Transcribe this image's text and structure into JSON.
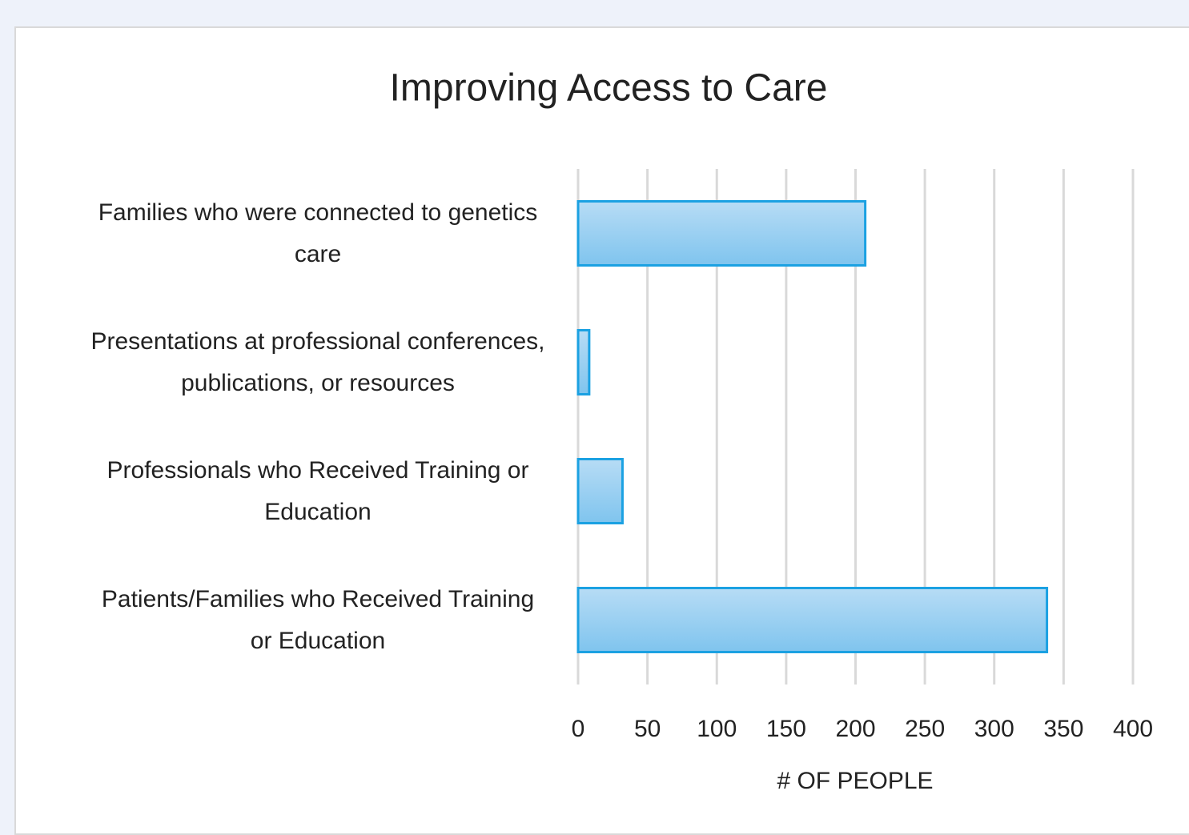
{
  "chart_data": {
    "type": "bar",
    "orientation": "horizontal",
    "title": "Improving  Access to Care",
    "categories": [
      "Families who were connected to genetics care",
      "Presentations at professional conferences, publications, or resources",
      "Professionals who Received Training or Education",
      "Patients/Families who Received Training or Education"
    ],
    "values": [
      207,
      8,
      32,
      338
    ],
    "color": "#1ba1e2",
    "xlim": [
      0,
      400
    ],
    "xticks": [
      0,
      50,
      100,
      150,
      200,
      250,
      300,
      350,
      400
    ],
    "xlabel": "# OF PEOPLE",
    "grid": true
  }
}
